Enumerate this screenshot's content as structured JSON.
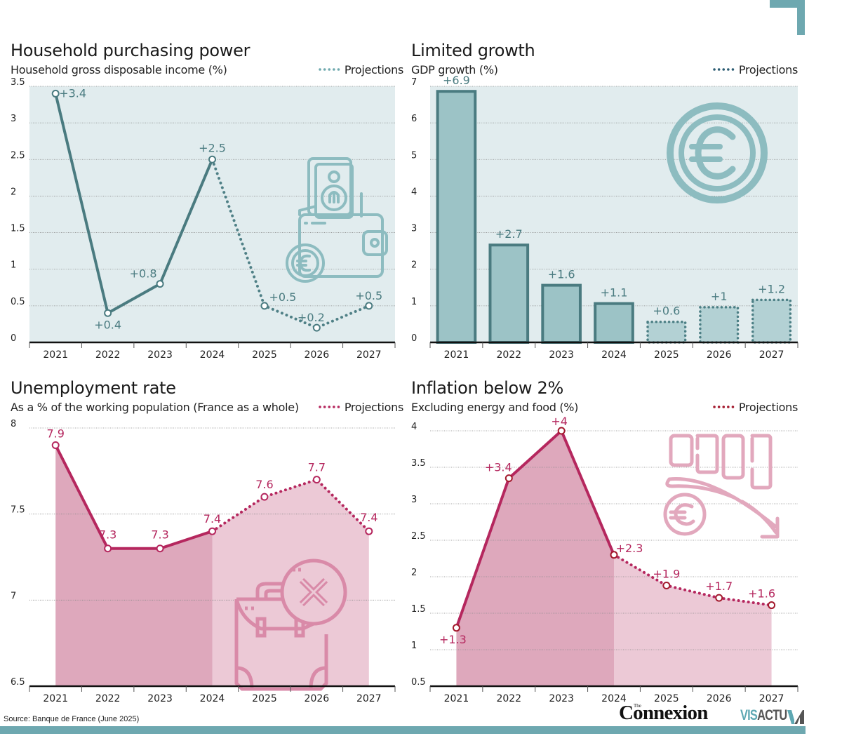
{
  "footer": {
    "source": "Source: Banque de France (June 2025)",
    "logo_connexion_the": "The",
    "logo_connexion": "Connexion",
    "logo_visactu_vis": "VIS",
    "logo_visactu_actu": "ACTU"
  },
  "colors": {
    "teal_dark": "#4a7b80",
    "teal_light": "#9cc3c6",
    "teal_bg": "#e1ecee",
    "teal_icon": "#8dbcc0",
    "crimson": "#b5275e",
    "pink_hist": "#dea8bc",
    "pink_proj": "#ecc9d6",
    "pink_icon": "#d98aa8",
    "accent": "#6ea8b0"
  },
  "chart_data": [
    {
      "id": "purchasing",
      "type": "line",
      "title": "Household purchasing power",
      "subtitle": "Household gross disposable income (%)",
      "legend": "Projections",
      "legend_placement": "top-right",
      "icon": "wallet-icon",
      "categories": [
        "2021",
        "2022",
        "2023",
        "2024",
        "2025",
        "2026",
        "2027"
      ],
      "values": [
        3.4,
        0.4,
        0.8,
        2.5,
        0.5,
        0.2,
        0.5
      ],
      "labels": [
        "+3.4",
        "+0.4",
        "+0.8",
        "+2.5",
        "+0.5",
        "+0.2",
        "+0.5"
      ],
      "projection_from_index": 3,
      "ylim": [
        0,
        3.5
      ],
      "yticks": [
        0,
        0.5,
        1,
        1.5,
        2,
        2.5,
        3,
        3.5
      ],
      "ytick_labels": [
        "0",
        "0.5",
        "1",
        "1.5",
        "2",
        "2.5",
        "3",
        "3.5"
      ],
      "grid": true
    },
    {
      "id": "gdp",
      "type": "bar",
      "title": "Limited growth",
      "subtitle": "GDP growth (%)",
      "legend": "Projections",
      "legend_placement": "top-right",
      "icon": "euro-coin-icon",
      "categories": [
        "2021",
        "2022",
        "2023",
        "2024",
        "2025",
        "2026",
        "2027"
      ],
      "values": [
        6.9,
        2.7,
        1.6,
        1.1,
        0.6,
        1.0,
        1.2
      ],
      "labels": [
        "+6.9",
        "+2.7",
        "+1.6",
        "+1.1",
        "+0.6",
        "+1",
        "+1.2"
      ],
      "projection_from_index": 4,
      "ylim": [
        0,
        7
      ],
      "yticks": [
        0,
        1,
        2,
        3,
        4,
        5,
        6,
        7
      ],
      "ytick_labels": [
        "0",
        "1",
        "2",
        "3",
        "4",
        "5",
        "6",
        "7"
      ],
      "grid": true
    },
    {
      "id": "unemployment",
      "type": "area",
      "title": "Unemployment rate",
      "subtitle": "As a % of the working population (France as a whole)",
      "legend": "Projections",
      "legend_placement": "top-right",
      "icon": "briefcase-cancel-icon",
      "categories": [
        "2021",
        "2022",
        "2023",
        "2024",
        "2025",
        "2026",
        "2027"
      ],
      "values": [
        7.9,
        7.3,
        7.3,
        7.4,
        7.6,
        7.7,
        7.4
      ],
      "labels": [
        "7.9",
        "7.3",
        "7.3",
        "7.4",
        "7.6",
        "7.7",
        "7.4"
      ],
      "projection_from_index": 3,
      "ylim": [
        6.5,
        8
      ],
      "yticks": [
        6.5,
        7,
        7.5,
        8
      ],
      "ytick_labels": [
        "6.5",
        "7",
        "7.5",
        "8"
      ],
      "grid": true
    },
    {
      "id": "inflation",
      "type": "area",
      "title": "Inflation below 2%",
      "subtitle": "Excluding energy and food (%)",
      "legend": "Projections",
      "legend_placement": "top-right",
      "icon": "price-decrease-icon",
      "categories": [
        "2021",
        "2022",
        "2023",
        "2024",
        "2025",
        "2026",
        "2027"
      ],
      "values": [
        1.3,
        3.35,
        4.0,
        2.3,
        1.88,
        1.71,
        1.61
      ],
      "labels": [
        "+1.3",
        "+3.4",
        "+4",
        "+2.3",
        "+1.9",
        "+1.7",
        "+1.6"
      ],
      "projection_from_index": 3,
      "ylim": [
        0.5,
        4
      ],
      "yticks": [
        0.5,
        1,
        1.5,
        2,
        2.5,
        3,
        3.5,
        4
      ],
      "ytick_labels": [
        "0.5",
        "1",
        "1.5",
        "2",
        "2.5",
        "3",
        "3.5",
        "4"
      ],
      "grid": true
    }
  ]
}
